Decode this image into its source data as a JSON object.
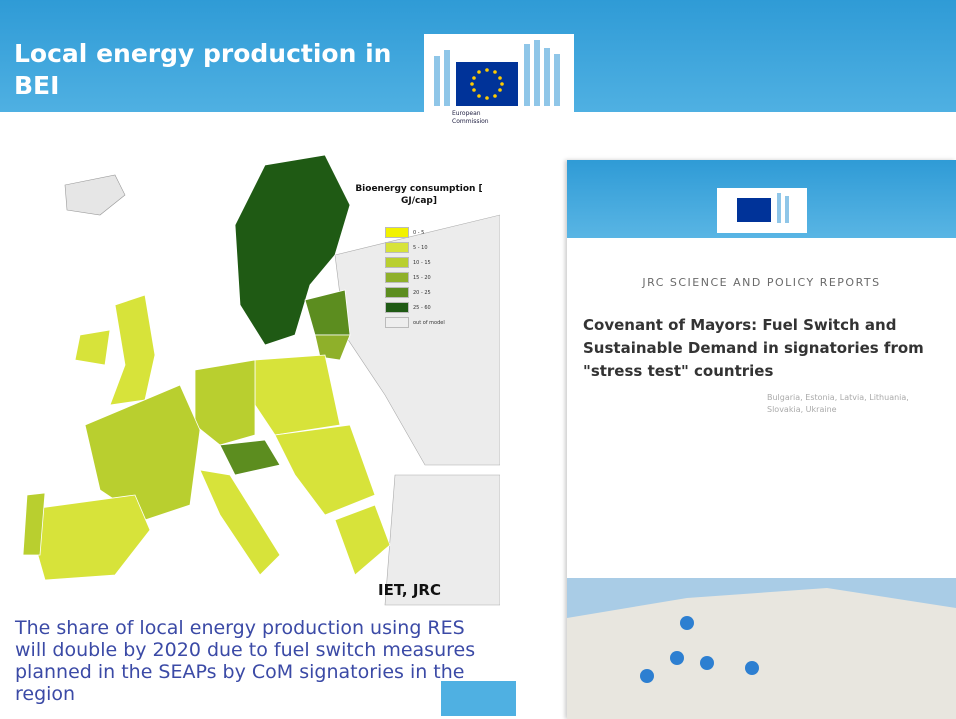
{
  "header": {
    "title": "Local energy production in BEI",
    "logo_caption": "European Commission"
  },
  "map": {
    "legend_title": "Bioenergy consumption [ GJ/cap]",
    "legend": [
      {
        "label": "0 - 5",
        "color": "#f2f200"
      },
      {
        "label": "5 - 10",
        "color": "#d7e33a"
      },
      {
        "label": "10 - 15",
        "color": "#b9cf2f"
      },
      {
        "label": "15 - 20",
        "color": "#8fb02a"
      },
      {
        "label": "20 - 25",
        "color": "#5c8d1f"
      },
      {
        "label": "25 - 60",
        "color": "#1f5a14"
      },
      {
        "label": "out of model",
        "color": "#eeeeee"
      }
    ],
    "credit": "IET, JRC"
  },
  "text": "The share of local energy production using RES will double by 2020 due to fuel switch measures planned in the SEAPs by CoM signatories in the region",
  "report": {
    "series": "JRC SCIENCE AND POLICY REPORTS",
    "title": "Covenant of Mayors: Fuel Switch and Sustainable Demand in signatories from \"stress test\" countries",
    "subtitle": "Bulgaria, Estonia, Latvia, Lithuania, Slovakia, Ukraine"
  }
}
